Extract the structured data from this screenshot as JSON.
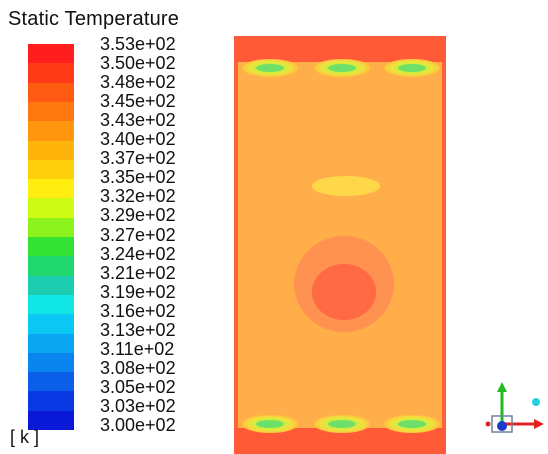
{
  "legend": {
    "title": "Static Temperature",
    "unit": "[ k ]",
    "ticks": [
      "3.53e+02",
      "3.50e+02",
      "3.48e+02",
      "3.45e+02",
      "3.43e+02",
      "3.40e+02",
      "3.37e+02",
      "3.35e+02",
      "3.32e+02",
      "3.29e+02",
      "3.27e+02",
      "3.24e+02",
      "3.21e+02",
      "3.19e+02",
      "3.16e+02",
      "3.13e+02",
      "3.11e+02",
      "3.08e+02",
      "3.05e+02",
      "3.03e+02",
      "3.00e+02"
    ],
    "colors": [
      "#ff1d1d",
      "#ff3a16",
      "#ff5a12",
      "#ff7810",
      "#ff960e",
      "#ffb40c",
      "#ffd00c",
      "#ffee10",
      "#cdfb14",
      "#8cf31c",
      "#34e234",
      "#20d770",
      "#1ccdb0",
      "#10e6e6",
      "#0cc8f4",
      "#0aa6f2",
      "#0a84ee",
      "#0a5ee8",
      "#0a38e2",
      "#0a18d8"
    ]
  },
  "chart_data": {
    "type": "heatmap",
    "title": "Static Temperature",
    "unit": "[ k ]",
    "range": [
      300,
      353
    ],
    "legend_placement": "left",
    "field": {
      "background_value": 340,
      "outer_edges_value": 352,
      "hot_region_center_value": 348,
      "hot_region_ring_value": 345,
      "upper_small_spot_value": 336,
      "inlet_vent_count_top": 3,
      "inlet_vent_count_bottom": 3,
      "vent_core_values": [
        324,
        330,
        335
      ]
    }
  }
}
